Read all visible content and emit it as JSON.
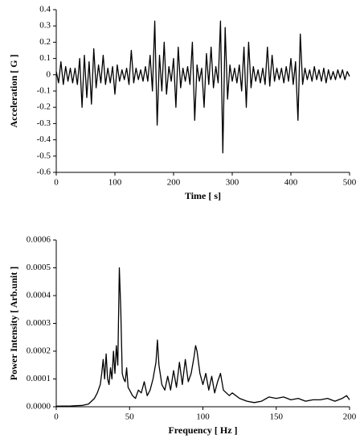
{
  "chart_data": [
    {
      "type": "line",
      "x_label": "Time [ s]",
      "y_label": "Acceleration [ G ]",
      "xlim": [
        0,
        500
      ],
      "xticks": [
        0,
        100,
        200,
        300,
        400,
        500
      ],
      "ylim": [
        -0.6,
        0.4
      ],
      "yticks": [
        0.4,
        0.3,
        0.2,
        0.1,
        0,
        -0.1,
        -0.2,
        -0.3,
        -0.4,
        -0.5,
        -0.6
      ],
      "series": [
        {
          "color": "#000000",
          "x": [
            0,
            4,
            8,
            12,
            16,
            20,
            24,
            28,
            32,
            36,
            40,
            44,
            48,
            52,
            56,
            60,
            64,
            68,
            72,
            76,
            80,
            84,
            88,
            92,
            96,
            100,
            104,
            108,
            112,
            116,
            120,
            124,
            128,
            132,
            136,
            140,
            144,
            148,
            152,
            156,
            160,
            164,
            168,
            172,
            176,
            180,
            184,
            188,
            192,
            196,
            200,
            204,
            208,
            212,
            216,
            220,
            224,
            228,
            232,
            236,
            240,
            244,
            248,
            252,
            256,
            260,
            264,
            268,
            272,
            276,
            280,
            284,
            288,
            292,
            296,
            300,
            304,
            308,
            312,
            316,
            320,
            324,
            328,
            332,
            336,
            340,
            344,
            348,
            352,
            356,
            360,
            364,
            368,
            372,
            376,
            380,
            384,
            388,
            392,
            396,
            400,
            404,
            408,
            412,
            416,
            420,
            424,
            428,
            432,
            436,
            440,
            444,
            448,
            452,
            456,
            460,
            464,
            468,
            472,
            476,
            480,
            484,
            488,
            492,
            496,
            500
          ],
          "values": [
            0.02,
            -0.05,
            0.08,
            -0.06,
            0.05,
            -0.04,
            0.04,
            -0.05,
            0.04,
            -0.06,
            0.1,
            -0.2,
            0.12,
            -0.14,
            0.08,
            -0.18,
            0.16,
            -0.08,
            0.06,
            -0.05,
            0.12,
            -0.06,
            0.04,
            -0.05,
            0.05,
            -0.12,
            0.06,
            -0.04,
            0.03,
            -0.03,
            0.04,
            -0.06,
            0.15,
            -0.05,
            0.04,
            -0.03,
            0.03,
            -0.04,
            0.05,
            -0.04,
            0.12,
            -0.1,
            0.33,
            -0.31,
            0.12,
            -0.1,
            0.2,
            -0.12,
            0.05,
            -0.04,
            0.1,
            -0.2,
            0.17,
            -0.08,
            0.04,
            -0.04,
            0.05,
            -0.06,
            0.2,
            -0.28,
            0.06,
            -0.04,
            0.04,
            -0.2,
            0.13,
            -0.06,
            0.17,
            -0.08,
            0.05,
            -0.05,
            0.33,
            -0.48,
            0.29,
            -0.15,
            0.06,
            -0.04,
            0.04,
            -0.05,
            0.06,
            -0.1,
            0.17,
            -0.2,
            0.2,
            -0.08,
            0.05,
            -0.04,
            0.03,
            -0.05,
            0.04,
            -0.06,
            0.17,
            -0.07,
            0.12,
            -0.04,
            0.04,
            -0.03,
            0.04,
            -0.05,
            0.05,
            -0.04,
            0.1,
            -0.06,
            0.08,
            -0.28,
            0.25,
            -0.06,
            0.04,
            -0.03,
            0.03,
            -0.04,
            0.05,
            -0.03,
            0.03,
            -0.04,
            0.04,
            -0.05,
            0.03,
            -0.03,
            0.02,
            -0.03,
            0.03,
            -0.02,
            0.03,
            -0.03,
            0.02,
            -0.01
          ]
        }
      ]
    },
    {
      "type": "line",
      "x_label": "Frequency [ Hz ]",
      "y_label": "Power Intensity [ Arb.unit ]",
      "xlim": [
        0,
        200
      ],
      "xticks": [
        0,
        50,
        100,
        150,
        200
      ],
      "ylim": [
        0,
        0.0006
      ],
      "yticks": [
        0.0006,
        0.0005,
        0.0004,
        0.0003,
        0.0002,
        0.0001,
        {
          "value": 0,
          "label": "0.0000"
        }
      ],
      "series": [
        {
          "color": "#000000",
          "x": [
            0,
            10,
            18,
            22,
            26,
            28,
            30,
            31,
            32,
            33,
            34,
            35,
            36,
            37,
            38,
            39,
            40,
            41,
            42,
            43,
            44,
            45,
            46,
            47,
            48,
            49,
            50,
            52,
            54,
            56,
            58,
            60,
            62,
            64,
            66,
            68,
            69,
            70,
            72,
            74,
            76,
            78,
            80,
            82,
            84,
            86,
            88,
            90,
            92,
            94,
            95,
            96,
            98,
            100,
            102,
            104,
            106,
            108,
            110,
            112,
            114,
            116,
            118,
            120,
            125,
            130,
            135,
            140,
            145,
            150,
            155,
            160,
            165,
            170,
            175,
            180,
            185,
            190,
            195,
            198,
            200
          ],
          "values": [
            2e-06,
            3e-06,
            5e-06,
            1e-05,
            3e-05,
            5e-05,
            8e-05,
            0.00012,
            0.00017,
            0.0001,
            0.00019,
            0.0001,
            8e-05,
            0.00014,
            0.0001,
            0.0002,
            0.00012,
            0.00022,
            0.00015,
            0.0005,
            0.00035,
            0.00012,
            0.0001,
            9e-05,
            0.00014,
            7e-05,
            6e-05,
            4e-05,
            3e-05,
            6e-05,
            5e-05,
            9e-05,
            4e-05,
            6e-05,
            0.0001,
            0.00016,
            0.00024,
            0.00015,
            8e-05,
            6e-05,
            0.00011,
            6e-05,
            0.00013,
            7e-05,
            0.00016,
            8e-05,
            0.00017,
            9e-05,
            0.00012,
            0.00018,
            0.00022,
            0.0002,
            0.00012,
            8e-05,
            0.00012,
            6e-05,
            0.00011,
            5e-05,
            9e-05,
            0.00012,
            6e-05,
            5e-05,
            4e-05,
            5e-05,
            3e-05,
            2e-05,
            1.5e-05,
            2e-05,
            3.5e-05,
            3e-05,
            3.5e-05,
            2.5e-05,
            3e-05,
            2e-05,
            2.5e-05,
            2.5e-05,
            3e-05,
            2e-05,
            3e-05,
            4e-05,
            2.5e-05
          ]
        }
      ]
    }
  ]
}
